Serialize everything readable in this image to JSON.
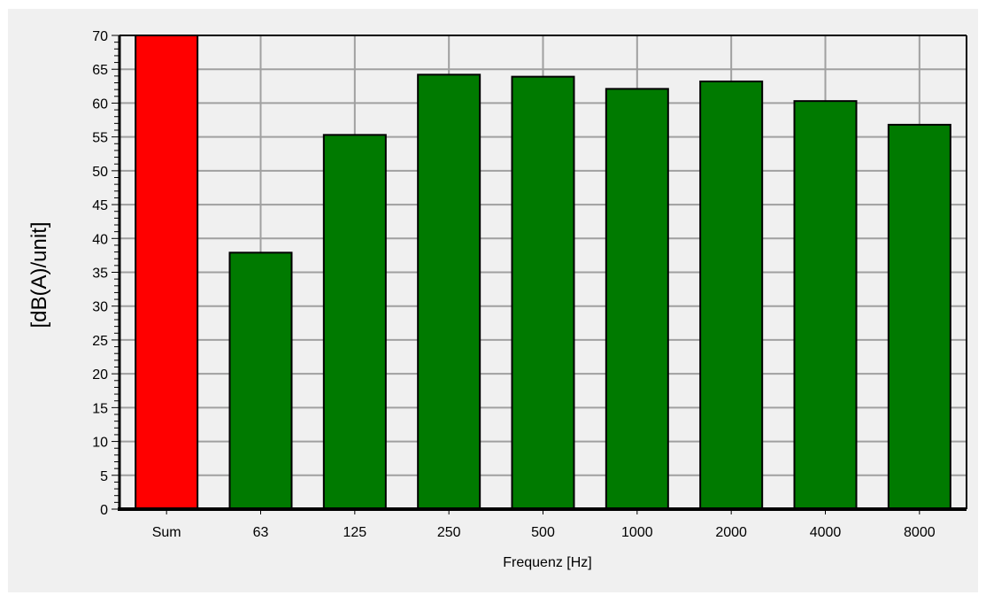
{
  "chart_data": {
    "type": "bar",
    "title": "",
    "xlabel": "Frequenz [Hz]",
    "ylabel": "[dB(A)/unit]",
    "categories": [
      "Sum",
      "63",
      "125",
      "250",
      "500",
      "1000",
      "2000",
      "4000",
      "8000"
    ],
    "values": [
      70.1,
      37.9,
      55.3,
      64.2,
      63.9,
      62.1,
      63.2,
      60.3,
      56.8
    ],
    "bar_colors": [
      "#ff0000",
      "#007a00",
      "#007a00",
      "#007a00",
      "#007a00",
      "#007a00",
      "#007a00",
      "#007a00",
      "#007a00"
    ],
    "ylim": [
      0,
      70
    ],
    "y_major_step": 5,
    "y_minor_step": 1,
    "grid": true,
    "legend": false
  },
  "colors": {
    "panel_background": "#f0f0f0",
    "plot_background": "#f0f0f0",
    "grid": "#a0a0a0",
    "axis": "#000000",
    "bar_outline": "#000000"
  }
}
